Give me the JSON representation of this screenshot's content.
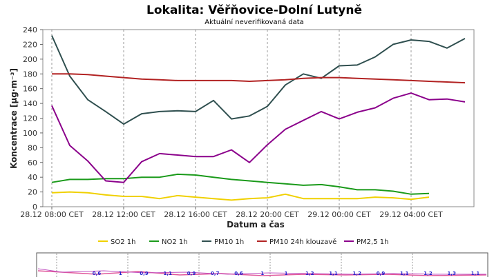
{
  "chart_data": {
    "type": "line",
    "title": "Lokalita: Věřňovice-Dolní Lutyně",
    "subtitle": "Aktuální neverifikovaná data",
    "xlabel": "Datum a čas",
    "ylabel": "Koncentrace [µg·m⁻³]",
    "ylim": [
      0,
      240
    ],
    "yticks": [
      "0",
      "20",
      "40",
      "60",
      "80",
      "100",
      "120",
      "140",
      "160",
      "180",
      "200",
      "220",
      "240"
    ],
    "x_hours": [
      "28.12 08:00",
      "28.12 09:00",
      "28.12 10:00",
      "28.12 11:00",
      "28.12 12:00",
      "28.12 13:00",
      "28.12 14:00",
      "28.12 15:00",
      "28.12 16:00",
      "28.12 17:00",
      "28.12 18:00",
      "28.12 19:00",
      "28.12 20:00",
      "28.12 21:00",
      "28.12 22:00",
      "28.12 23:00",
      "29.12 00:00",
      "29.12 01:00",
      "29.12 02:00",
      "29.12 03:00",
      "29.12 04:00",
      "29.12 05:00",
      "29.12 06:00",
      "29.12 07:00"
    ],
    "xticks": [
      {
        "label": "28.12 08:00 CET",
        "at": "28.12 08:00"
      },
      {
        "label": "28.12 12:00 CET",
        "at": "28.12 12:00"
      },
      {
        "label": "28.12 16:00 CET",
        "at": "28.12 16:00"
      },
      {
        "label": "28.12 20:00 CET",
        "at": "28.12 20:00"
      },
      {
        "label": "29.12 00:00 CET",
        "at": "29.12 00:00"
      },
      {
        "label": "29.12 04:00 CET",
        "at": "29.12 04:00"
      }
    ],
    "x_axis_start": "28.12 07:30",
    "x_axis_end": "29.12 07:30",
    "grid": true,
    "legend_position": "bottom",
    "series": [
      {
        "name": "SO2 1h",
        "color": "#f0d000",
        "values": [
          19,
          20,
          19,
          16,
          14,
          14,
          11,
          15,
          13,
          11,
          9,
          11,
          12,
          17,
          11,
          11,
          11,
          11,
          13,
          12,
          10,
          13,
          null,
          null
        ]
      },
      {
        "name": "NO2 1h",
        "color": "#1a9a1a",
        "values": [
          33,
          37,
          37,
          38,
          38,
          40,
          40,
          44,
          43,
          40,
          37,
          35,
          33,
          31,
          29,
          30,
          27,
          23,
          23,
          21,
          17,
          18,
          null,
          null
        ]
      },
      {
        "name": "PM10 1h",
        "color": "#2f4f4f",
        "values": [
          232,
          177,
          145,
          129,
          112,
          126,
          129,
          130,
          129,
          144,
          119,
          123,
          136,
          165,
          180,
          174,
          191,
          192,
          203,
          220,
          226,
          224,
          215,
          228
        ]
      },
      {
        "name": "PM10 24h klouzavě",
        "color": "#b22222",
        "values": [
          180,
          180,
          179,
          177,
          175,
          173,
          172,
          171,
          171,
          171,
          171,
          170,
          171,
          172,
          174,
          175,
          175,
          174,
          173,
          172,
          171,
          170,
          169,
          168
        ]
      },
      {
        "name": "PM2,5 1h",
        "color": "#8b008b",
        "values": [
          137,
          83,
          62,
          35,
          33,
          61,
          72,
          70,
          68,
          68,
          77,
          60,
          84,
          105,
          117,
          129,
          119,
          128,
          134,
          147,
          154,
          145,
          146,
          142
        ]
      }
    ]
  },
  "navigator": {
    "labels": [
      "0,6",
      "1",
      "0,9",
      "1,1",
      "0,9",
      "0,7",
      "0,6",
      "1",
      "1",
      "1,2",
      "1,1",
      "1,2",
      "0,9",
      "1,1",
      "1,2",
      "1,3",
      "1,1"
    ]
  }
}
